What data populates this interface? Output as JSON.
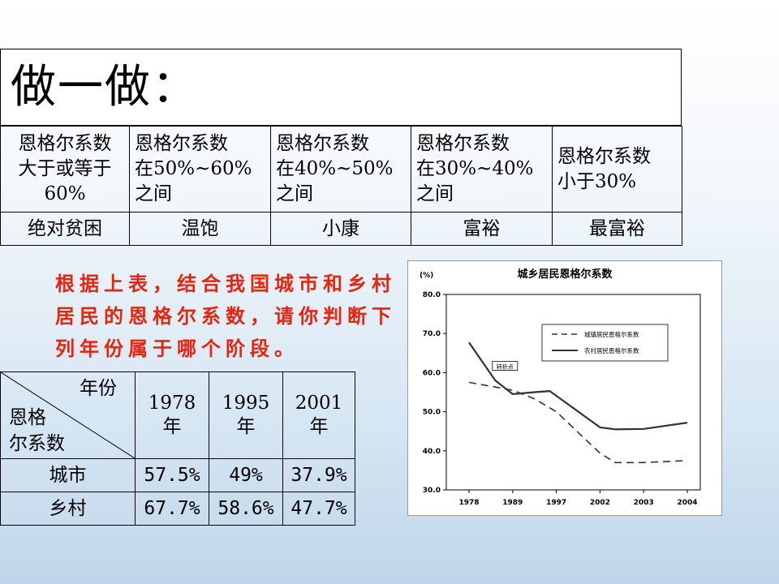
{
  "title": "做一做：",
  "stages": [
    {
      "condition": "恩格尔系数\n大于或等于\n60%",
      "label": "绝对贫困"
    },
    {
      "condition": "恩格尔系数\n在50%~60%\n之间",
      "label": "温饱"
    },
    {
      "condition": "恩格尔系数\n在40%~50%\n之间",
      "label": "小康"
    },
    {
      "condition": "恩格尔系数\n在30%~40%\n之间",
      "label": "富裕"
    },
    {
      "condition": "恩格尔系数\n小于30%",
      "label": "最富裕"
    }
  ],
  "question": "根据上表，结合我国城市和乡村居民的恩格尔系数，请你判断下列年份属于哪个阶段。",
  "data_table": {
    "corner_top": "年份",
    "corner_bottom": "恩格\n尔系数",
    "years": [
      "1978\n年",
      "1995\n年",
      "2001\n年"
    ],
    "rows": [
      {
        "label": "城市",
        "values": [
          "57.5%",
          "49%",
          "37.9%"
        ]
      },
      {
        "label": "乡村",
        "values": [
          "67.7%",
          "58.6%",
          "47.7%"
        ]
      }
    ]
  },
  "chart_data": {
    "type": "line",
    "title": "城乡居民恩格尔系数",
    "ylabel": "(%)",
    "ylim": [
      30.0,
      80.0
    ],
    "yticks": [
      "30.0",
      "40.0",
      "50.0",
      "60.0",
      "70.0",
      "80.0"
    ],
    "categories": [
      "1978",
      "1989",
      "1997",
      "2002",
      "2003",
      "2004"
    ],
    "x": [
      0,
      1,
      1.6,
      2,
      3,
      4,
      5
    ],
    "series": [
      {
        "name": "城镇居民恩格尔系数",
        "style": "dashed",
        "x": [
          0,
          1,
          1.5,
          2,
          3,
          3.35,
          4,
          5
        ],
        "values": [
          57.5,
          55.5,
          53.3,
          50.0,
          39.4,
          37.0,
          37.0,
          37.5
        ]
      },
      {
        "name": "农村居民恩格尔系数",
        "style": "solid",
        "x": [
          0,
          0.6,
          1,
          1.5,
          1.85,
          3,
          3.35,
          4,
          5
        ],
        "values": [
          67.7,
          58.0,
          54.5,
          55.0,
          55.3,
          46.0,
          45.5,
          45.6,
          47.2
        ]
      }
    ],
    "annotation": "转折点",
    "grid": false,
    "legend": "top-right"
  },
  "colors": {
    "question_text": "#e8240c",
    "title_box": "#ffffff"
  }
}
